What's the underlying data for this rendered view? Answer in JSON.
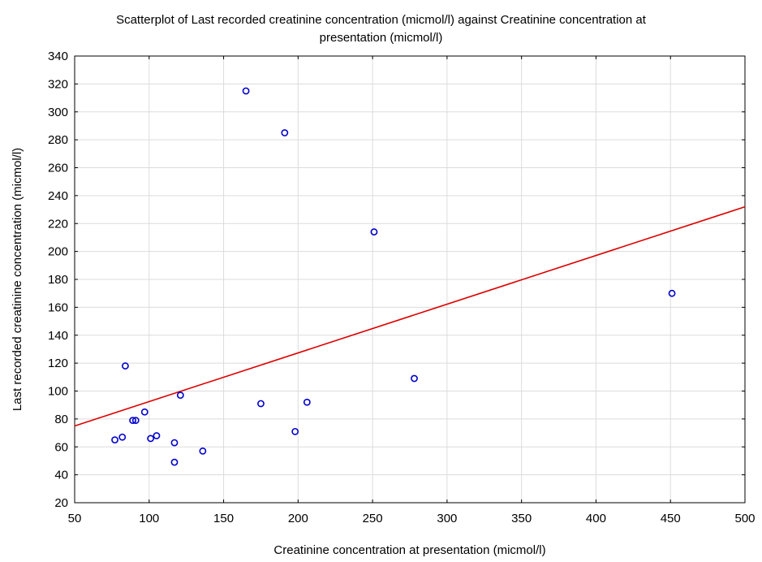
{
  "chart_data": {
    "type": "scatter",
    "title_line1": "Scatterplot of Last recorded creatinine concentration (micmol/l) against Creatinine concentration at",
    "title_line2": "presentation (micmol/l)",
    "xlabel": "Creatinine concentration at presentation (micmol/l)",
    "ylabel": "Last recorded creatinine concentration (micmol/l)",
    "xlim": [
      50,
      500
    ],
    "ylim": [
      20,
      340
    ],
    "x_ticks": [
      50,
      100,
      150,
      200,
      250,
      300,
      350,
      400,
      450,
      500
    ],
    "y_ticks": [
      20,
      40,
      60,
      80,
      100,
      120,
      140,
      160,
      180,
      200,
      220,
      240,
      260,
      280,
      300,
      320,
      340
    ],
    "grid": true,
    "point_color": "#0000cc",
    "line_color": "#dd0000",
    "points": [
      {
        "x": 165,
        "y": 315
      },
      {
        "x": 191,
        "y": 285
      },
      {
        "x": 251,
        "y": 214
      },
      {
        "x": 451,
        "y": 170
      },
      {
        "x": 84,
        "y": 118
      },
      {
        "x": 278,
        "y": 109
      },
      {
        "x": 121,
        "y": 97
      },
      {
        "x": 175,
        "y": 91
      },
      {
        "x": 206,
        "y": 92
      },
      {
        "x": 97,
        "y": 85
      },
      {
        "x": 89,
        "y": 79
      },
      {
        "x": 91,
        "y": 79
      },
      {
        "x": 198,
        "y": 71
      },
      {
        "x": 77,
        "y": 65
      },
      {
        "x": 82,
        "y": 67
      },
      {
        "x": 101,
        "y": 66
      },
      {
        "x": 105,
        "y": 68
      },
      {
        "x": 117,
        "y": 63
      },
      {
        "x": 136,
        "y": 57
      },
      {
        "x": 117,
        "y": 49
      }
    ],
    "regression_line": {
      "x": [
        50,
        500
      ],
      "y": [
        75,
        232
      ]
    }
  }
}
